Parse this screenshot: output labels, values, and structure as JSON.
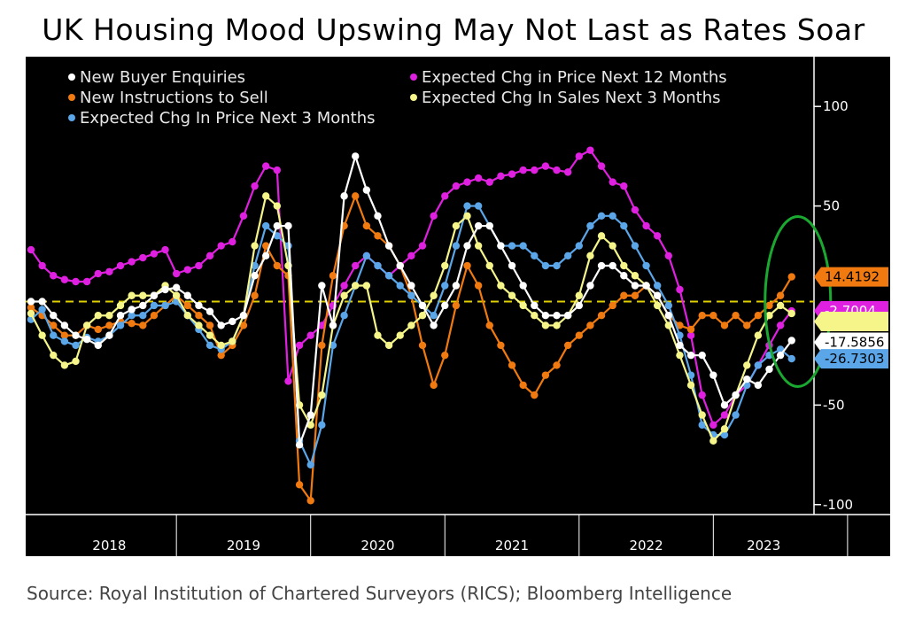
{
  "title": "UK Housing Mood Upswing May Not Last as Rates Soar",
  "source": "Source: Royal Institution of Chartered Surveyors (RICS); Bloomberg Intelligence",
  "chart_data": {
    "type": "line",
    "x_start": "2017-12",
    "x_end": "2023-10",
    "ylim": [
      -105,
      125
    ],
    "y_ticks": [
      {
        "value": 100,
        "label": "100"
      },
      {
        "value": 50,
        "label": "50"
      },
      {
        "value": -50,
        "label": "-50"
      },
      {
        "value": -100,
        "label": "-100"
      }
    ],
    "x_ticks": [
      "2018",
      "2019",
      "2020",
      "2021",
      "2022",
      "2023"
    ],
    "reference_line": 2,
    "series": [
      {
        "name": "New Buyer Enquiries",
        "color": "#ffffff",
        "values": [
          2,
          2,
          -5,
          -10,
          -15,
          -17,
          -20,
          -15,
          -5,
          -2,
          0,
          5,
          8,
          9,
          5,
          0,
          -3,
          -10,
          -8,
          -5,
          15,
          25,
          40,
          40,
          -70,
          -55,
          10,
          -10,
          55,
          75,
          58,
          45,
          30,
          20,
          10,
          0,
          -10,
          0,
          10,
          30,
          40,
          40,
          30,
          20,
          10,
          0,
          -5,
          -5,
          -5,
          0,
          10,
          20,
          20,
          15,
          10,
          10,
          5,
          -5,
          -20,
          -25,
          -25,
          -35,
          -50,
          -45,
          -37,
          -40,
          -32,
          -25,
          -17.5856
        ]
      },
      {
        "name": "New Instructions to Sell",
        "color": "#f07a10",
        "values": [
          -1,
          -5,
          -10,
          -15,
          -15,
          -10,
          -12,
          -10,
          -8,
          -9,
          -10,
          -5,
          0,
          5,
          0,
          -5,
          -10,
          -25,
          -20,
          -10,
          5,
          30,
          20,
          15,
          -90,
          -98,
          -20,
          15,
          40,
          55,
          40,
          35,
          30,
          20,
          5,
          -20,
          -40,
          -25,
          0,
          20,
          10,
          -10,
          -20,
          -30,
          -40,
          -45,
          -35,
          -30,
          -20,
          -15,
          -10,
          -5,
          0,
          5,
          5,
          10,
          5,
          -5,
          -10,
          -12,
          -5,
          -5,
          -10,
          -5,
          -10,
          -5,
          0,
          5,
          14.4192
        ]
      },
      {
        "name": "Expected Chg In Price Next 3 Months",
        "color": "#5aa6e8",
        "values": [
          -7,
          -2,
          -15,
          -18,
          -20,
          -16,
          -18,
          -15,
          -10,
          -5,
          -5,
          0,
          0,
          2,
          -5,
          -12,
          -20,
          -22,
          -18,
          -5,
          20,
          40,
          35,
          30,
          -68,
          -80,
          -60,
          -20,
          -5,
          10,
          25,
          20,
          15,
          10,
          5,
          0,
          -5,
          10,
          30,
          50,
          50,
          40,
          30,
          30,
          30,
          25,
          20,
          20,
          25,
          30,
          40,
          45,
          45,
          40,
          30,
          20,
          10,
          0,
          -15,
          -35,
          -60,
          -65,
          -65,
          -55,
          -40,
          -30,
          -25,
          -22,
          -26.7303
        ]
      },
      {
        "name": "Expected Chg in Price Next 12 Months",
        "color": "#e020e0",
        "values": [
          28,
          20,
          15,
          13,
          12,
          12,
          16,
          17,
          20,
          22,
          24,
          26,
          28,
          16,
          18,
          20,
          25,
          30,
          32,
          45,
          60,
          70,
          68,
          -38,
          -20,
          -15,
          -10,
          0,
          10,
          20,
          25,
          20,
          15,
          20,
          25,
          30,
          45,
          55,
          60,
          62,
          64,
          62,
          65,
          66,
          68,
          68,
          70,
          68,
          67,
          75,
          78,
          70,
          62,
          60,
          48,
          40,
          35,
          25,
          8,
          -15,
          -45,
          -60,
          -55,
          -45,
          -40,
          -30,
          -20,
          -10,
          -2.7004
        ]
      },
      {
        "name": "Expected Chg In Sales Next 3 Months",
        "color": "#f5f58a",
        "values": [
          -4,
          -15,
          -25,
          -30,
          -28,
          -10,
          -5,
          -5,
          0,
          5,
          5,
          5,
          10,
          5,
          -5,
          -10,
          -15,
          -20,
          -18,
          -5,
          30,
          55,
          50,
          20,
          -50,
          -60,
          -45,
          -10,
          5,
          10,
          10,
          -15,
          -20,
          -15,
          -10,
          -5,
          5,
          20,
          40,
          45,
          30,
          20,
          10,
          5,
          0,
          -5,
          -10,
          -10,
          -5,
          5,
          25,
          35,
          30,
          20,
          15,
          10,
          0,
          -10,
          -25,
          -40,
          -55,
          -68,
          -62,
          -45,
          -30,
          -15,
          -5,
          0,
          -4
        ]
      }
    ],
    "end_labels": [
      {
        "series": "New Instructions to Sell",
        "value": 14.4192,
        "label": "14.4192",
        "bg": "#f07a10",
        "fg": "#000000"
      },
      {
        "series": "Expected Chg in Price Next 12 Months",
        "value": -2.7004,
        "label": "-2.7004",
        "bg": "#e020e0",
        "fg": "#ffffff"
      },
      {
        "series": "Expected Chg In Sales Next 3 Months",
        "value": -4,
        "label": "",
        "bg": "#f5f58a",
        "fg": "#000000"
      },
      {
        "series": "New Buyer Enquiries",
        "value": -17.5856,
        "label": "-17.5856",
        "bg": "#ffffff",
        "fg": "#000000"
      },
      {
        "series": "Expected Chg In Price Next 3 Months",
        "value": -26.7303,
        "label": "-26.7303",
        "bg": "#5aa6e8",
        "fg": "#000000"
      }
    ],
    "legend": [
      {
        "name": "New Buyer Enquiries",
        "color": "#ffffff"
      },
      {
        "name": "New Instructions to Sell",
        "color": "#f07a10"
      },
      {
        "name": "Expected Chg In Price Next 3 Months",
        "color": "#5aa6e8"
      },
      {
        "name": "Expected Chg in Price Next 12 Months",
        "color": "#e020e0"
      },
      {
        "name": "Expected Chg In Sales Next 3 Months",
        "color": "#f5f58a"
      }
    ],
    "legend_placement": "top-left",
    "annotation": {
      "shape": "ellipse",
      "color": "#1aa830",
      "marks": "latest readings"
    },
    "grid": false
  }
}
